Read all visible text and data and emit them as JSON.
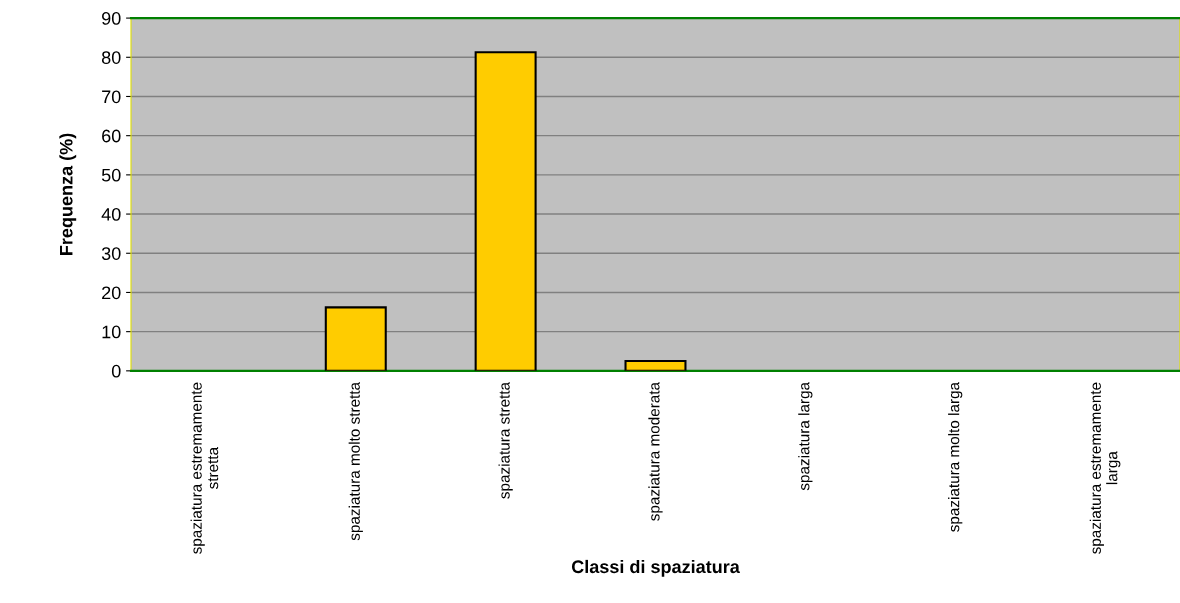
{
  "chart_data": {
    "type": "bar",
    "xlabel": "Classi di spaziatura",
    "ylabel": "Frequenza (%)",
    "categories": [
      "spaziatura estremamente\nstretta",
      "spaziatura molto stretta",
      "spaziatura stretta",
      "spaziatura moderata",
      "spaziatura larga",
      "spaziatura molto larga",
      "spaziatura estremamente\nlarga"
    ],
    "values": [
      0,
      16.2,
      81.3,
      2.5,
      0,
      0,
      0
    ],
    "color": "#ffcc00",
    "ylim": [
      0,
      90
    ],
    "yticks": [
      0,
      10,
      20,
      30,
      40,
      50,
      60,
      70,
      80,
      90
    ],
    "grid": "y"
  }
}
